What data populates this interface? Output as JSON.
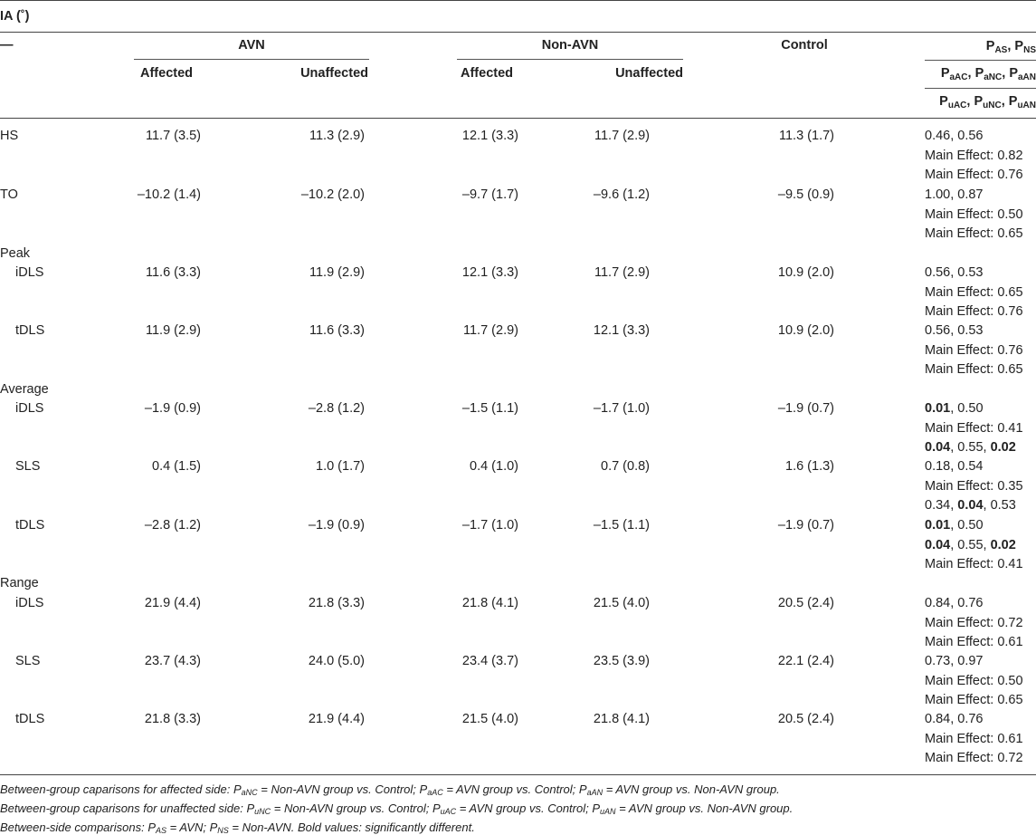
{
  "title": "IA (˚)",
  "header": {
    "stub": "—",
    "groups": {
      "avn": "AVN",
      "non_avn": "Non-AVN",
      "control": "Control"
    },
    "sub": {
      "affected": "Affected",
      "unaffected": "Unaffected"
    },
    "p_lines": [
      [
        [
          "P",
          "AS"
        ],
        [
          ", ",
          ""
        ],
        [
          "P",
          "NS"
        ]
      ],
      [
        [
          "P",
          "aAC"
        ],
        [
          ", ",
          ""
        ],
        [
          "P",
          "aNC"
        ],
        [
          ", ",
          ""
        ],
        [
          "P",
          "aAN"
        ]
      ],
      [
        [
          "P",
          "uAC"
        ],
        [
          ", ",
          ""
        ],
        [
          "P",
          "uNC"
        ],
        [
          ", ",
          ""
        ],
        [
          "P",
          "uAN"
        ]
      ]
    ]
  },
  "rows": [
    {
      "label": "HS",
      "indent": false,
      "values": [
        "11.7 (3.5)",
        "11.3 (2.9)",
        "12.1 (3.3)",
        "11.7 (2.9)",
        "11.3 (1.7)"
      ],
      "p": [
        [
          [
            "0.46, 0.56",
            false
          ]
        ],
        [
          [
            "Main Effect: 0.82",
            false
          ]
        ],
        [
          [
            "Main Effect: 0.76",
            false
          ]
        ]
      ]
    },
    {
      "label": "TO",
      "indent": false,
      "values": [
        "–10.2 (1.4)",
        "–10.2 (2.0)",
        "–9.7 (1.7)",
        "–9.6 (1.2)",
        "–9.5 (0.9)"
      ],
      "p": [
        [
          [
            "1.00, 0.87",
            false
          ]
        ],
        [
          [
            "Main Effect: 0.50",
            false
          ]
        ],
        [
          [
            "Main Effect: 0.65",
            false
          ]
        ]
      ]
    },
    {
      "label": "Peak",
      "indent": false,
      "values": [],
      "p": []
    },
    {
      "label": "iDLS",
      "indent": true,
      "values": [
        "11.6 (3.3)",
        "11.9 (2.9)",
        "12.1 (3.3)",
        "11.7 (2.9)",
        "10.9 (2.0)"
      ],
      "p": [
        [
          [
            "0.56, 0.53",
            false
          ]
        ],
        [
          [
            "Main Effect: 0.65",
            false
          ]
        ],
        [
          [
            "Main Effect: 0.76",
            false
          ]
        ]
      ]
    },
    {
      "label": "tDLS",
      "indent": true,
      "values": [
        "11.9 (2.9)",
        "11.6 (3.3)",
        "11.7 (2.9)",
        "12.1 (3.3)",
        "10.9 (2.0)"
      ],
      "p": [
        [
          [
            "0.56, 0.53",
            false
          ]
        ],
        [
          [
            "Main Effect: 0.76",
            false
          ]
        ],
        [
          [
            "Main Effect: 0.65",
            false
          ]
        ]
      ]
    },
    {
      "label": "Average",
      "indent": false,
      "values": [],
      "p": []
    },
    {
      "label": "iDLS",
      "indent": true,
      "values": [
        "–1.9 (0.9)",
        "–2.8 (1.2)",
        "–1.5 (1.1)",
        "–1.7 (1.0)",
        "–1.9 (0.7)"
      ],
      "p": [
        [
          [
            "0.01",
            true
          ],
          [
            ", 0.50",
            false
          ]
        ],
        [
          [
            "Main Effect: 0.41",
            false
          ]
        ],
        [
          [
            "0.04",
            true
          ],
          [
            ", 0.55, ",
            false
          ],
          [
            "0.02",
            true
          ]
        ]
      ]
    },
    {
      "label": "SLS",
      "indent": true,
      "values": [
        "0.4 (1.5)",
        "1.0 (1.7)",
        "0.4 (1.0)",
        "0.7 (0.8)",
        "1.6 (1.3)"
      ],
      "p": [
        [
          [
            "0.18, 0.54",
            false
          ]
        ],
        [
          [
            "Main Effect: 0.35",
            false
          ]
        ],
        [
          [
            "0.34, ",
            false
          ],
          [
            "0.04",
            true
          ],
          [
            ", 0.53",
            false
          ]
        ]
      ]
    },
    {
      "label": "tDLS",
      "indent": true,
      "values": [
        "–2.8 (1.2)",
        "–1.9 (0.9)",
        "–1.7 (1.0)",
        "–1.5 (1.1)",
        "–1.9 (0.7)"
      ],
      "p": [
        [
          [
            "0.01",
            true
          ],
          [
            ", 0.50",
            false
          ]
        ],
        [
          [
            "0.04",
            true
          ],
          [
            ", 0.55, ",
            false
          ],
          [
            "0.02",
            true
          ]
        ],
        [
          [
            "Main Effect: 0.41",
            false
          ]
        ]
      ]
    },
    {
      "label": "Range",
      "indent": false,
      "values": [],
      "p": []
    },
    {
      "label": "iDLS",
      "indent": true,
      "values": [
        "21.9 (4.4)",
        "21.8 (3.3)",
        "21.8 (4.1)",
        "21.5 (4.0)",
        "20.5 (2.4)"
      ],
      "p": [
        [
          [
            "0.84, 0.76",
            false
          ]
        ],
        [
          [
            "Main Effect: 0.72",
            false
          ]
        ],
        [
          [
            "Main Effect: 0.61",
            false
          ]
        ]
      ]
    },
    {
      "label": "SLS",
      "indent": true,
      "values": [
        "23.7 (4.3)",
        "24.0 (5.0)",
        "23.4 (3.7)",
        "23.5 (3.9)",
        "22.1 (2.4)"
      ],
      "p": [
        [
          [
            "0.73, 0.97",
            false
          ]
        ],
        [
          [
            "Main Effect: 0.50",
            false
          ]
        ],
        [
          [
            "Main Effect: 0.65",
            false
          ]
        ]
      ]
    },
    {
      "label": "tDLS",
      "indent": true,
      "values": [
        "21.8 (3.3)",
        "21.9 (4.4)",
        "21.5 (4.0)",
        "21.8 (4.1)",
        "20.5 (2.4)"
      ],
      "p": [
        [
          [
            "0.84, 0.76",
            false
          ]
        ],
        [
          [
            "Main Effect: 0.61",
            false
          ]
        ],
        [
          [
            "Main Effect: 0.72",
            false
          ]
        ]
      ]
    }
  ],
  "footnotes": [
    [
      [
        "Between-group caparisons for affected side: ",
        ""
      ],
      [
        "P",
        "aNC"
      ],
      [
        " = Non-AVN group vs. Control; ",
        ""
      ],
      [
        "P",
        "aAC"
      ],
      [
        " = AVN group vs. Control; ",
        ""
      ],
      [
        "P",
        "aAN"
      ],
      [
        " = AVN group vs. Non-AVN group.",
        ""
      ]
    ],
    [
      [
        "Between-group caparisons for unaffected side: ",
        ""
      ],
      [
        "P",
        "uNC"
      ],
      [
        " = Non-AVN group vs. Control; ",
        ""
      ],
      [
        "P",
        "uAC"
      ],
      [
        " = AVN group vs. Control; ",
        ""
      ],
      [
        "P",
        "uAN"
      ],
      [
        " = AVN group vs. Non-AVN group.",
        ""
      ]
    ],
    [
      [
        "Between-side comparisons: ",
        ""
      ],
      [
        "P",
        "AS"
      ],
      [
        " = AVN; ",
        ""
      ],
      [
        "P",
        "NS"
      ],
      [
        " = Non-AVN. Bold values: significantly different.",
        ""
      ]
    ]
  ]
}
